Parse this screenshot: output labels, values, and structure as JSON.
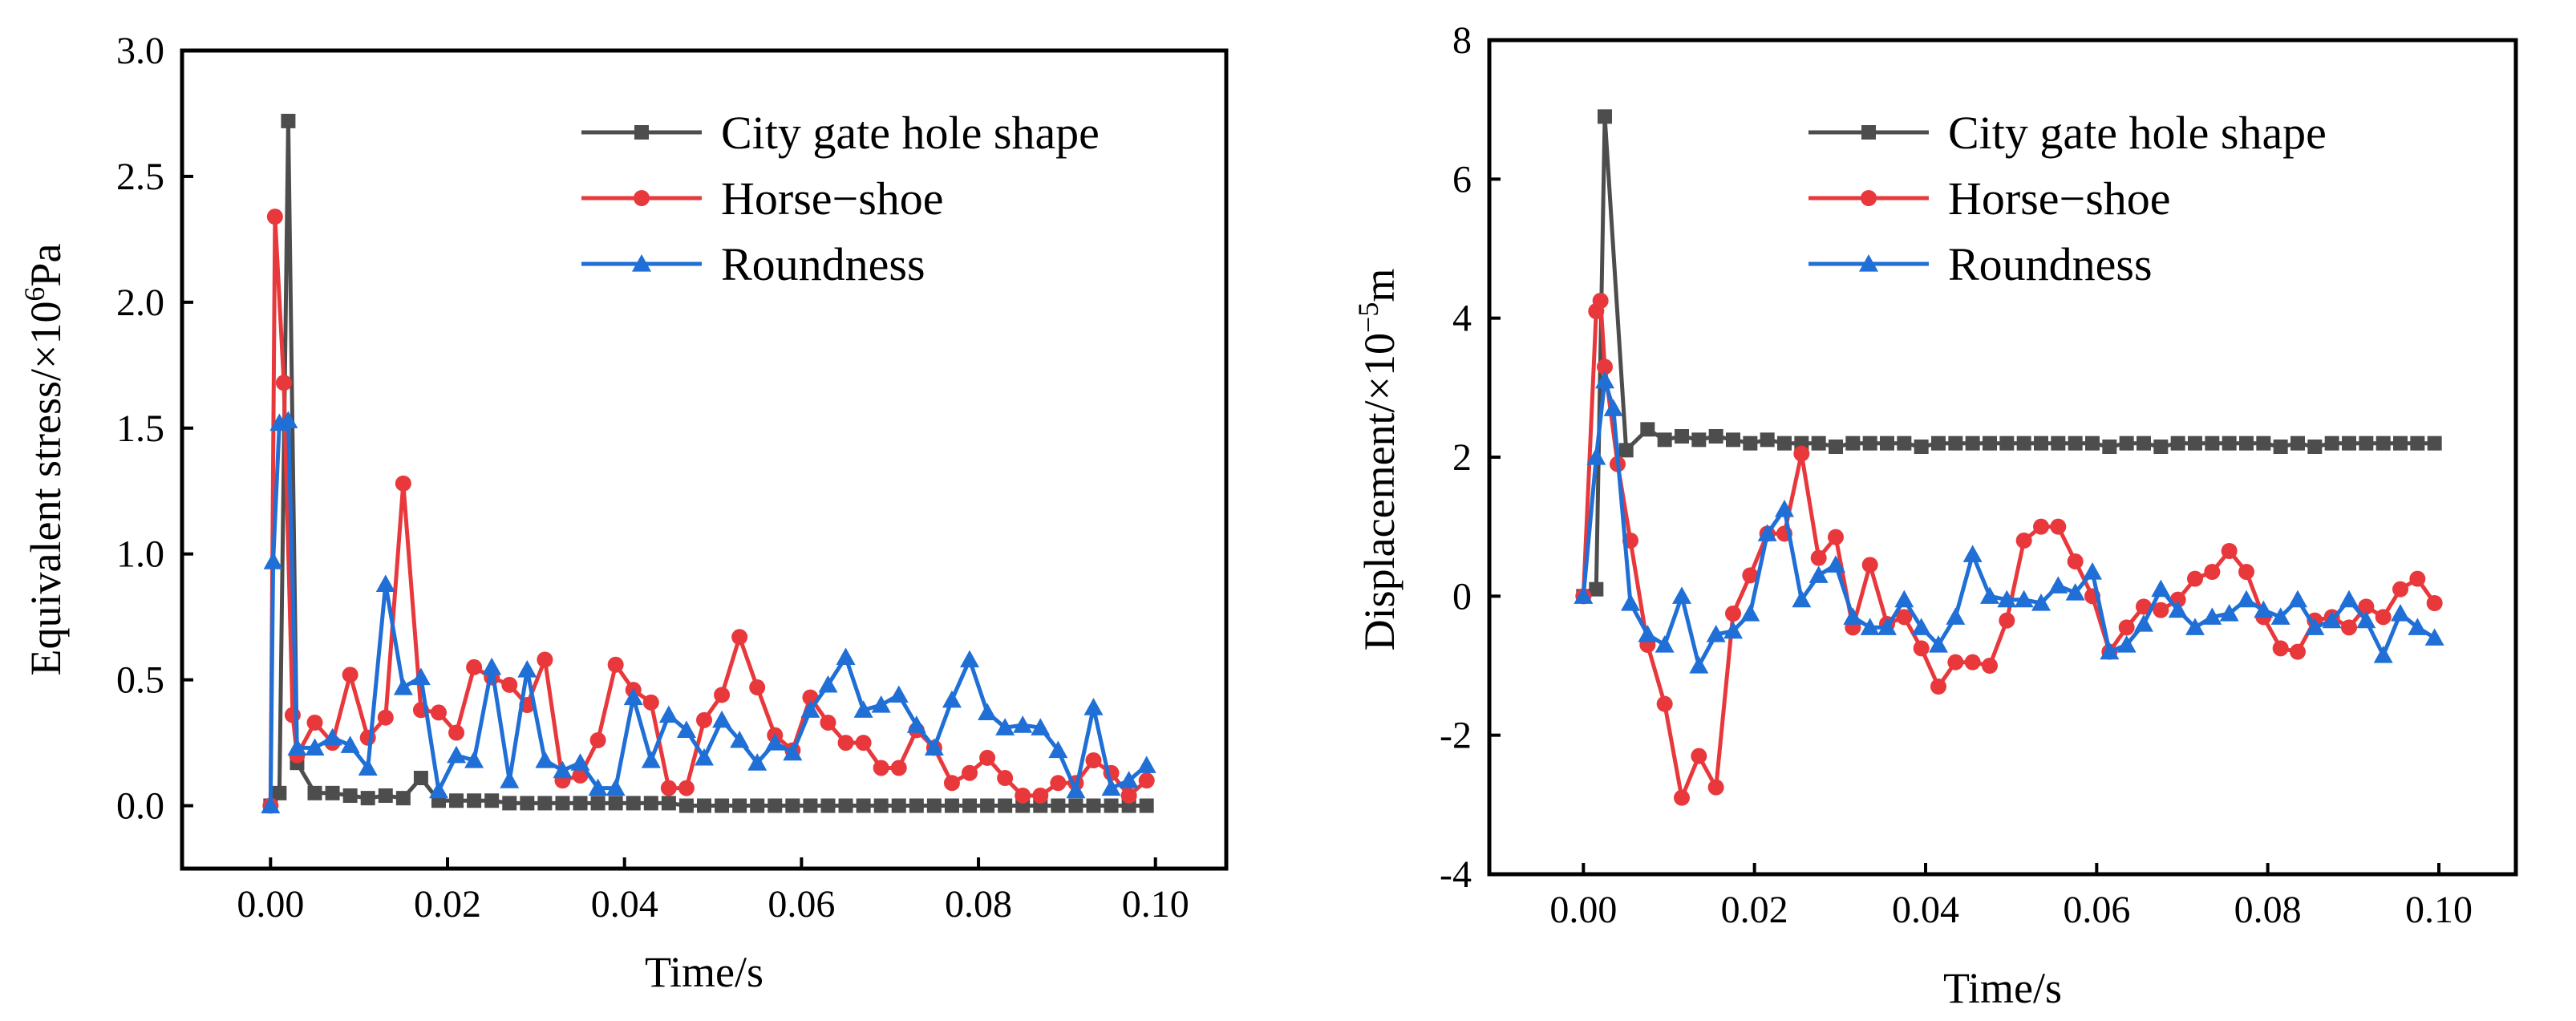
{
  "chart_data": [
    {
      "type": "line",
      "xlabel": "Time/s",
      "ylabel": "Equivalent stress/×10",
      "ylabel_exp": "6",
      "ylabel_unit": "Pa",
      "xlim": [
        -0.01,
        0.108
      ],
      "ylim": [
        -0.25,
        3.0
      ],
      "xticks": [
        0.0,
        0.02,
        0.04,
        0.06,
        0.08,
        0.1
      ],
      "xtick_labels": [
        "0.00",
        "0.02",
        "0.04",
        "0.06",
        "0.08",
        "0.10"
      ],
      "yticks": [
        0.0,
        0.5,
        1.0,
        1.5,
        2.0,
        2.5,
        3.0
      ],
      "ytick_labels": [
        "0.0",
        "0.5",
        "1.0",
        "1.5",
        "2.0",
        "2.5",
        "3.0"
      ],
      "legend_position": "top-right",
      "series": [
        {
          "name": "City gate hole shape",
          "color": "#4d4d4d",
          "marker": "square",
          "x": [
            0.0,
            0.001,
            0.002,
            0.003,
            0.005,
            0.007,
            0.009,
            0.011,
            0.013,
            0.015,
            0.017,
            0.019,
            0.021,
            0.023,
            0.025,
            0.027,
            0.029,
            0.031,
            0.033,
            0.035,
            0.037,
            0.039,
            0.041,
            0.043,
            0.045,
            0.047,
            0.049,
            0.051,
            0.053,
            0.055,
            0.057,
            0.059,
            0.061,
            0.063,
            0.065,
            0.067,
            0.069,
            0.071,
            0.073,
            0.075,
            0.077,
            0.079,
            0.081,
            0.083,
            0.085,
            0.087,
            0.089,
            0.091,
            0.093,
            0.095,
            0.097,
            0.099
          ],
          "values": [
            0.0,
            0.05,
            2.72,
            0.17,
            0.05,
            0.05,
            0.04,
            0.03,
            0.04,
            0.03,
            0.11,
            0.02,
            0.02,
            0.02,
            0.02,
            0.01,
            0.01,
            0.01,
            0.01,
            0.01,
            0.01,
            0.01,
            0.01,
            0.01,
            0.01,
            0.0,
            0.0,
            0.0,
            0.0,
            0.0,
            0.0,
            0.0,
            0.0,
            0.0,
            0.0,
            0.0,
            0.0,
            0.0,
            0.0,
            0.0,
            0.0,
            0.0,
            0.0,
            0.0,
            0.0,
            0.0,
            0.0,
            0.0,
            0.0,
            0.0,
            0.0,
            0.0
          ]
        },
        {
          "name": "Horse−shoe",
          "color": "#e8383c",
          "marker": "circle",
          "x": [
            0.0,
            0.0005,
            0.0015,
            0.0025,
            0.003,
            0.005,
            0.007,
            0.009,
            0.011,
            0.013,
            0.015,
            0.017,
            0.019,
            0.021,
            0.023,
            0.025,
            0.027,
            0.029,
            0.031,
            0.033,
            0.035,
            0.037,
            0.039,
            0.041,
            0.043,
            0.045,
            0.047,
            0.049,
            0.051,
            0.053,
            0.055,
            0.057,
            0.059,
            0.061,
            0.063,
            0.065,
            0.067,
            0.069,
            0.071,
            0.073,
            0.075,
            0.077,
            0.079,
            0.081,
            0.083,
            0.085,
            0.087,
            0.089,
            0.091,
            0.093,
            0.095,
            0.097,
            0.099
          ],
          "values": [
            0.0,
            2.34,
            1.68,
            0.36,
            0.2,
            0.33,
            0.25,
            0.52,
            0.27,
            0.35,
            1.28,
            0.38,
            0.37,
            0.29,
            0.55,
            0.51,
            0.48,
            0.4,
            0.58,
            0.1,
            0.12,
            0.26,
            0.56,
            0.46,
            0.41,
            0.07,
            0.07,
            0.34,
            0.44,
            0.67,
            0.47,
            0.28,
            0.22,
            0.43,
            0.33,
            0.25,
            0.25,
            0.15,
            0.15,
            0.3,
            0.23,
            0.09,
            0.13,
            0.19,
            0.11,
            0.04,
            0.04,
            0.09,
            0.09,
            0.18,
            0.13,
            0.04,
            0.1
          ]
        },
        {
          "name": "Roundness",
          "color": "#1f6fd6",
          "marker": "triangle",
          "x": [
            0.0,
            0.0003,
            0.001,
            0.002,
            0.003,
            0.005,
            0.007,
            0.009,
            0.011,
            0.013,
            0.015,
            0.017,
            0.019,
            0.021,
            0.023,
            0.025,
            0.027,
            0.029,
            0.031,
            0.033,
            0.035,
            0.037,
            0.039,
            0.041,
            0.043,
            0.045,
            0.047,
            0.049,
            0.051,
            0.053,
            0.055,
            0.057,
            0.059,
            0.061,
            0.063,
            0.065,
            0.067,
            0.069,
            0.071,
            0.073,
            0.075,
            0.077,
            0.079,
            0.081,
            0.083,
            0.085,
            0.087,
            0.089,
            0.091,
            0.093,
            0.095,
            0.097,
            0.099
          ],
          "values": [
            0.0,
            0.97,
            1.52,
            1.53,
            0.23,
            0.23,
            0.27,
            0.24,
            0.15,
            0.88,
            0.47,
            0.51,
            0.06,
            0.2,
            0.18,
            0.55,
            0.1,
            0.54,
            0.18,
            0.14,
            0.17,
            0.07,
            0.07,
            0.43,
            0.18,
            0.36,
            0.3,
            0.19,
            0.34,
            0.26,
            0.17,
            0.25,
            0.21,
            0.38,
            0.48,
            0.59,
            0.38,
            0.4,
            0.44,
            0.32,
            0.23,
            0.42,
            0.58,
            0.37,
            0.31,
            0.32,
            0.31,
            0.22,
            0.06,
            0.39,
            0.07,
            0.1,
            0.16
          ]
        }
      ]
    },
    {
      "type": "line",
      "xlabel": "Time/s",
      "ylabel": "Displacement/×10",
      "ylabel_exp": "−5",
      "ylabel_unit": "m",
      "xlim": [
        -0.011,
        0.109
      ],
      "ylim": [
        -4,
        8
      ],
      "xticks": [
        0.0,
        0.02,
        0.04,
        0.06,
        0.08,
        0.1
      ],
      "xtick_labels": [
        "0.00",
        "0.02",
        "0.04",
        "0.06",
        "0.08",
        "0.10"
      ],
      "yticks": [
        -4,
        -2,
        0,
        2,
        4,
        6,
        8
      ],
      "ytick_labels": [
        "-4",
        "-2",
        "0",
        "2",
        "4",
        "6",
        "8"
      ],
      "legend_position": "top-right",
      "series": [
        {
          "name": "City gate hole shape",
          "color": "#4d4d4d",
          "marker": "square",
          "x": [
            0.0,
            0.0015,
            0.0025,
            0.005,
            0.0075,
            0.0095,
            0.0115,
            0.0135,
            0.0155,
            0.0175,
            0.0195,
            0.0215,
            0.0235,
            0.0255,
            0.0275,
            0.0295,
            0.0315,
            0.0335,
            0.0355,
            0.0375,
            0.0395,
            0.0415,
            0.0435,
            0.0455,
            0.0475,
            0.0495,
            0.0515,
            0.0535,
            0.0555,
            0.0575,
            0.0595,
            0.0615,
            0.0635,
            0.0655,
            0.0675,
            0.0695,
            0.0715,
            0.0735,
            0.0755,
            0.0775,
            0.0795,
            0.0815,
            0.0835,
            0.0855,
            0.0875,
            0.0895,
            0.0915,
            0.0935,
            0.0955,
            0.0975,
            0.0995
          ],
          "values": [
            0.0,
            0.1,
            6.9,
            2.1,
            2.4,
            2.25,
            2.3,
            2.25,
            2.3,
            2.25,
            2.2,
            2.25,
            2.2,
            2.2,
            2.2,
            2.15,
            2.2,
            2.2,
            2.2,
            2.2,
            2.15,
            2.2,
            2.2,
            2.2,
            2.2,
            2.2,
            2.2,
            2.2,
            2.2,
            2.2,
            2.2,
            2.15,
            2.2,
            2.2,
            2.15,
            2.2,
            2.2,
            2.2,
            2.2,
            2.2,
            2.2,
            2.15,
            2.2,
            2.15,
            2.2,
            2.2,
            2.2,
            2.2,
            2.2,
            2.2,
            2.2
          ]
        },
        {
          "name": "Horse−shoe",
          "color": "#e8383c",
          "marker": "circle",
          "x": [
            0.0,
            0.0015,
            0.002,
            0.0025,
            0.004,
            0.0055,
            0.0075,
            0.0095,
            0.0115,
            0.0135,
            0.0155,
            0.0175,
            0.0195,
            0.0215,
            0.0235,
            0.0255,
            0.0275,
            0.0295,
            0.0315,
            0.0335,
            0.0355,
            0.0375,
            0.0395,
            0.0415,
            0.0435,
            0.0455,
            0.0475,
            0.0495,
            0.0515,
            0.0535,
            0.0555,
            0.0575,
            0.0595,
            0.0615,
            0.0635,
            0.0655,
            0.0675,
            0.0695,
            0.0715,
            0.0735,
            0.0755,
            0.0775,
            0.0795,
            0.0815,
            0.0835,
            0.0855,
            0.0875,
            0.0895,
            0.0915,
            0.0935,
            0.0955,
            0.0975,
            0.0995
          ],
          "values": [
            0.0,
            4.1,
            4.25,
            3.3,
            1.9,
            0.8,
            -0.7,
            -1.55,
            -2.9,
            -2.3,
            -2.75,
            -0.25,
            0.3,
            0.9,
            0.9,
            2.05,
            0.55,
            0.85,
            -0.45,
            0.45,
            -0.4,
            -0.3,
            -0.75,
            -1.3,
            -0.95,
            -0.95,
            -1.0,
            -0.35,
            0.8,
            1.0,
            1.0,
            0.5,
            0.0,
            -0.8,
            -0.45,
            -0.15,
            -0.2,
            -0.05,
            0.25,
            0.35,
            0.65,
            0.35,
            -0.3,
            -0.75,
            -0.8,
            -0.35,
            -0.3,
            -0.45,
            -0.15,
            -0.3,
            0.1,
            0.25,
            -0.1
          ]
        },
        {
          "name": "Roundness",
          "color": "#1f6fd6",
          "marker": "triangle",
          "x": [
            0.0,
            0.0015,
            0.0025,
            0.0035,
            0.0055,
            0.0075,
            0.0095,
            0.0115,
            0.0135,
            0.0155,
            0.0175,
            0.0195,
            0.0215,
            0.0235,
            0.0255,
            0.0275,
            0.0295,
            0.0315,
            0.0335,
            0.0355,
            0.0375,
            0.0395,
            0.0415,
            0.0435,
            0.0455,
            0.0475,
            0.0495,
            0.0515,
            0.0535,
            0.0555,
            0.0575,
            0.0595,
            0.0615,
            0.0635,
            0.0655,
            0.0675,
            0.0695,
            0.0715,
            0.0735,
            0.0755,
            0.0775,
            0.0795,
            0.0815,
            0.0835,
            0.0855,
            0.0875,
            0.0895,
            0.0915,
            0.0935,
            0.0955,
            0.0975,
            0.0995
          ],
          "values": [
            0.0,
            2.0,
            3.1,
            2.7,
            -0.1,
            -0.55,
            -0.7,
            0.0,
            -1.0,
            -0.55,
            -0.5,
            -0.25,
            0.9,
            1.25,
            -0.05,
            0.3,
            0.45,
            -0.3,
            -0.45,
            -0.45,
            -0.05,
            -0.45,
            -0.7,
            -0.3,
            0.6,
            0.0,
            -0.05,
            -0.05,
            -0.1,
            0.15,
            0.05,
            0.35,
            -0.8,
            -0.7,
            -0.4,
            0.1,
            -0.2,
            -0.45,
            -0.3,
            -0.25,
            -0.05,
            -0.2,
            -0.3,
            -0.05,
            -0.45,
            -0.35,
            -0.05,
            -0.35,
            -0.85,
            -0.25,
            -0.45,
            -0.6
          ]
        }
      ]
    }
  ]
}
